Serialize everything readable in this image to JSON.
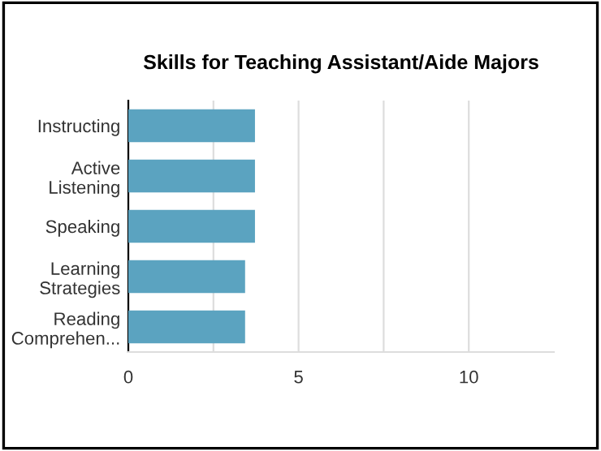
{
  "chart_data": {
    "type": "bar",
    "orientation": "horizontal",
    "title": "Skills for Teaching Assistant/Aide Majors",
    "categories": [
      "Instructing",
      "Active\nListening",
      "Speaking",
      "Learning\nStrategies",
      "Reading\nComprehen..."
    ],
    "values": [
      3.72,
      3.72,
      3.72,
      3.43,
      3.43
    ],
    "color": "#5ba3c0",
    "xlim": [
      0,
      12.5
    ],
    "xticks": [
      0,
      {
        "value": 2.5,
        "label": null
      },
      5,
      {
        "value": 7.5,
        "label": null
      },
      10
    ],
    "grid": "x"
  }
}
